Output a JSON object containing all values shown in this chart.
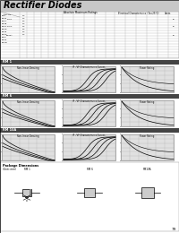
{
  "title": "Rectifier Diodes",
  "page_number": "79",
  "section_labels": [
    "RM 1",
    "RM 6",
    "RM 10A"
  ],
  "graph_titles": [
    "Non-linear Derating",
    "IF - VF Characteristics Curves",
    "Power Rating"
  ],
  "title_bg": "#c8c8c8",
  "section_bar_color": "#444444",
  "graph_bg": "#e0e0e0",
  "grid_color": "#999999",
  "table_line_color": "#aaaaaa"
}
